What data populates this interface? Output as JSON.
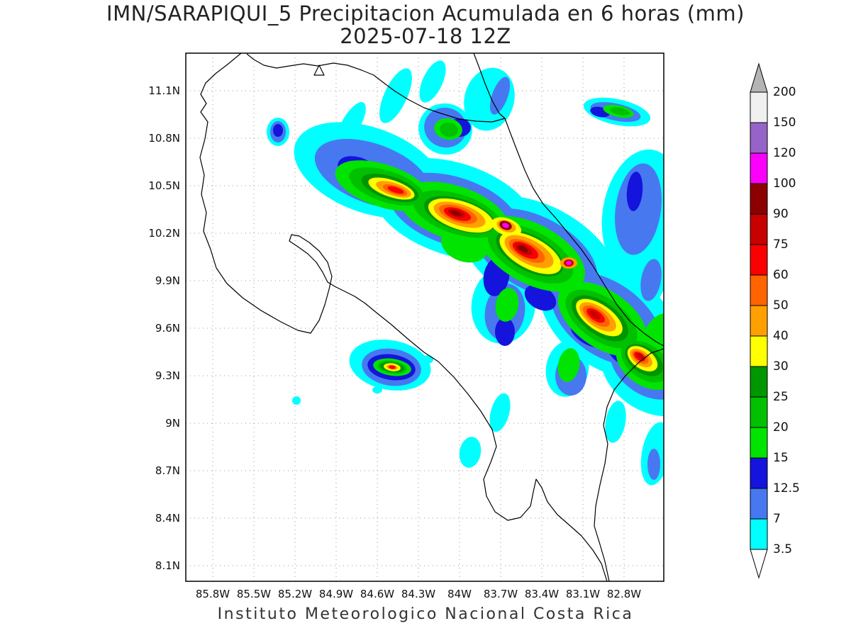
{
  "title": {
    "line1": "IMN/SARAPIQUI_5 Precipitacion Acumulada en 6 horas (mm)",
    "line2": "2025-07-18 12Z"
  },
  "caption": "Instituto Meteorologico Nacional Costa Rica",
  "axes": {
    "lat_ticks": [
      "11.1N",
      "10.8N",
      "10.5N",
      "10.2N",
      "9.9N",
      "9.6N",
      "9.3N",
      "9N",
      "8.7N",
      "8.4N",
      "8.1N"
    ],
    "lon_ticks": [
      "85.8W",
      "85.5W",
      "85.2W",
      "84.9W",
      "84.6W",
      "84.3W",
      "84W",
      "83.7W",
      "83.4W",
      "83.1W",
      "82.8W"
    ]
  },
  "chart_data": {
    "type": "heatmap",
    "title": "IMN/SARAPIQUI_5 Precipitacion Acumulada en 6 horas (mm)",
    "valid_time": "2025-07-18 12Z",
    "model": "IMN/SARAPIQUI_5",
    "variable": "Precipitacion Acumulada en 6 horas",
    "units": "mm",
    "region": "Costa Rica",
    "lon_ticks_deg_w": [
      85.8,
      85.5,
      85.2,
      84.9,
      84.6,
      84.3,
      84.0,
      83.7,
      83.4,
      83.1,
      82.8
    ],
    "lat_ticks_deg_n": [
      11.1,
      10.8,
      10.5,
      10.2,
      9.9,
      9.6,
      9.3,
      9.0,
      8.7,
      8.4,
      8.1
    ],
    "grid": "dotted",
    "legend_position": "right",
    "colorbar": {
      "tick_labels": [
        "3.5",
        "7",
        "12.5",
        "15",
        "20",
        "25",
        "30",
        "40",
        "50",
        "60",
        "75",
        "90",
        "100",
        "120",
        "150",
        "200"
      ],
      "levels_mm": [
        3.5,
        7,
        12.5,
        15,
        20,
        25,
        30,
        40,
        50,
        60,
        75,
        90,
        100,
        120,
        150,
        200
      ],
      "segment_colors": [
        "#00ffff",
        "#4878f0",
        "#1414dc",
        "#00e400",
        "#00c000",
        "#009600",
        "#ffff00",
        "#ffa000",
        "#ff6400",
        "#fa0000",
        "#c80000",
        "#8c0000",
        "#fa00fa",
        "#9664c8",
        "#f0f0f0"
      ],
      "under_color": "#ffffff",
      "over_color": "#b4b4b4"
    },
    "band_axis_lon_lat": [
      [
        84.7,
        10.6
      ],
      [
        84.0,
        10.3
      ],
      [
        83.5,
        10.1
      ],
      [
        83.0,
        9.7
      ],
      [
        82.7,
        9.4
      ]
    ],
    "cells": [
      {
        "center_lon_w": 84.47,
        "center_lat_n": 10.47,
        "peak_mm": 75,
        "desc": "NW core of main band"
      },
      {
        "center_lon_w": 84.02,
        "center_lat_n": 10.32,
        "peak_mm": 100,
        "desc": "dark red core"
      },
      {
        "center_lon_w": 83.66,
        "center_lat_n": 10.25,
        "peak_mm": 120,
        "desc": "band maximum, magenta core"
      },
      {
        "center_lon_w": 83.53,
        "center_lat_n": 10.1,
        "peak_mm": 100,
        "desc": "dark red core"
      },
      {
        "center_lon_w": 83.2,
        "center_lat_n": 10.01,
        "peak_mm": 120,
        "desc": "small magenta spot"
      },
      {
        "center_lon_w": 83.01,
        "center_lat_n": 9.68,
        "peak_mm": 90,
        "desc": "core on Caribbean slope"
      },
      {
        "center_lon_w": 82.69,
        "center_lat_n": 9.42,
        "peak_mm": 90,
        "desc": "SE end of band at map edge"
      },
      {
        "center_lon_w": 84.49,
        "center_lat_n": 9.35,
        "peak_mm": 75,
        "desc": "isolated cell, central Pacific coast"
      },
      {
        "center_lon_w": 84.08,
        "center_lat_n": 10.85,
        "peak_mm": 20,
        "desc": "cell on Nicaragua border"
      },
      {
        "center_lon_w": 82.86,
        "center_lat_n": 10.97,
        "peak_mm": 25,
        "desc": "streak near NE corner"
      },
      {
        "center_lon_w": 85.32,
        "center_lat_n": 10.84,
        "peak_mm": 15,
        "desc": "small blue spot NW"
      }
    ]
  }
}
